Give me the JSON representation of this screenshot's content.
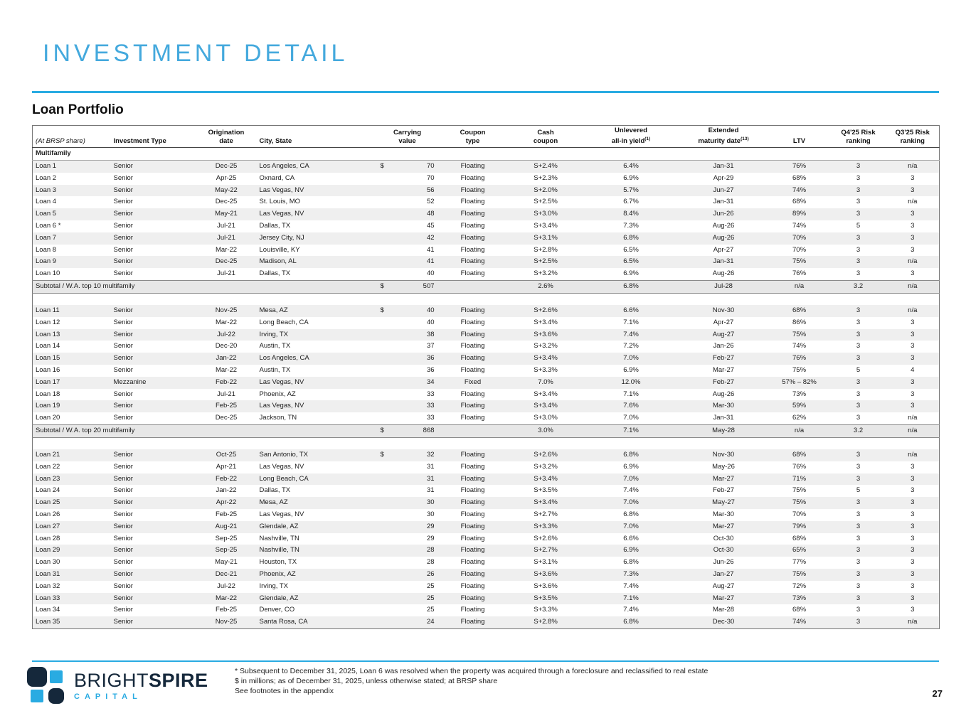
{
  "page": {
    "title": "INVESTMENT DETAIL",
    "section_title": "Loan Portfolio",
    "page_number": "27"
  },
  "colors": {
    "accent_blue": "#29ABE2",
    "title_blue": "#44A9DD",
    "logo_navy": "#15283B",
    "stripe_gray": "#EFEFEF",
    "subtotal_gray": "#E7E7E7"
  },
  "table": {
    "group_label": "Multifamily",
    "headers": [
      {
        "l1": "",
        "l2": "(At BRSP share)"
      },
      {
        "l1": "",
        "l2": "Investment Type"
      },
      {
        "l1": "Origination",
        "l2": "date"
      },
      {
        "l1": "",
        "l2": "City, State"
      },
      {
        "l1": "Carrying",
        "l2": "value"
      },
      {
        "l1": "Coupon",
        "l2": "type"
      },
      {
        "l1": "Cash",
        "l2": "coupon"
      },
      {
        "l1": "Unlevered",
        "l2": "all-in yield",
        "sup": "(1)"
      },
      {
        "l1": "Extended",
        "l2": "maturity date",
        "sup": "(13)"
      },
      {
        "l1": "",
        "l2": "LTV"
      },
      {
        "l1": "Q4'25 Risk",
        "l2": "ranking"
      },
      {
        "l1": "Q3'25 Risk",
        "l2": "ranking"
      }
    ],
    "sections": [
      {
        "rows": [
          [
            "Loan 1",
            "Senior",
            "Dec-25",
            "Los Angeles, CA",
            "$",
            "70",
            "Floating",
            "S+2.4%",
            "6.4%",
            "Jan-31",
            "76%",
            "3",
            "n/a"
          ],
          [
            "Loan 2",
            "Senior",
            "Apr-25",
            "Oxnard, CA",
            "",
            "70",
            "Floating",
            "S+2.3%",
            "6.9%",
            "Apr-29",
            "68%",
            "3",
            "3"
          ],
          [
            "Loan 3",
            "Senior",
            "May-22",
            "Las Vegas, NV",
            "",
            "56",
            "Floating",
            "S+2.0%",
            "5.7%",
            "Jun-27",
            "74%",
            "3",
            "3"
          ],
          [
            "Loan 4",
            "Senior",
            "Dec-25",
            "St. Louis, MO",
            "",
            "52",
            "Floating",
            "S+2.5%",
            "6.7%",
            "Jan-31",
            "68%",
            "3",
            "n/a"
          ],
          [
            "Loan 5",
            "Senior",
            "May-21",
            "Las Vegas, NV",
            "",
            "48",
            "Floating",
            "S+3.0%",
            "8.4%",
            "Jun-26",
            "89%",
            "3",
            "3"
          ],
          [
            "Loan 6 *",
            "Senior",
            "Jul-21",
            "Dallas, TX",
            "",
            "45",
            "Floating",
            "S+3.4%",
            "7.3%",
            "Aug-26",
            "74%",
            "5",
            "3"
          ],
          [
            "Loan 7",
            "Senior",
            "Jul-21",
            "Jersey City, NJ",
            "",
            "42",
            "Floating",
            "S+3.1%",
            "6.8%",
            "Aug-26",
            "70%",
            "3",
            "3"
          ],
          [
            "Loan 8",
            "Senior",
            "Mar-22",
            "Louisville, KY",
            "",
            "41",
            "Floating",
            "S+2.8%",
            "6.5%",
            "Apr-27",
            "70%",
            "3",
            "3"
          ],
          [
            "Loan 9",
            "Senior",
            "Dec-25",
            "Madison, AL",
            "",
            "41",
            "Floating",
            "S+2.5%",
            "6.5%",
            "Jan-31",
            "75%",
            "3",
            "n/a"
          ],
          [
            "Loan 10",
            "Senior",
            "Jul-21",
            "Dallas, TX",
            "",
            "40",
            "Floating",
            "S+3.2%",
            "6.9%",
            "Aug-26",
            "76%",
            "3",
            "3"
          ]
        ],
        "subtotal": {
          "label": "Subtotal / W.A. top 10 multifamily",
          "cells": [
            "$",
            "507",
            "",
            "2.6%",
            "6.8%",
            "Jul-28",
            "n/a",
            "3.2",
            "n/a"
          ]
        }
      },
      {
        "rows": [
          [
            "Loan 11",
            "Senior",
            "Nov-25",
            "Mesa, AZ",
            "$",
            "40",
            "Floating",
            "S+2.6%",
            "6.6%",
            "Nov-30",
            "68%",
            "3",
            "n/a"
          ],
          [
            "Loan 12",
            "Senior",
            "Mar-22",
            "Long Beach, CA",
            "",
            "40",
            "Floating",
            "S+3.4%",
            "7.1%",
            "Apr-27",
            "86%",
            "3",
            "3"
          ],
          [
            "Loan 13",
            "Senior",
            "Jul-22",
            "Irving, TX",
            "",
            "38",
            "Floating",
            "S+3.6%",
            "7.4%",
            "Aug-27",
            "75%",
            "3",
            "3"
          ],
          [
            "Loan 14",
            "Senior",
            "Dec-20",
            "Austin, TX",
            "",
            "37",
            "Floating",
            "S+3.2%",
            "7.2%",
            "Jan-26",
            "74%",
            "3",
            "3"
          ],
          [
            "Loan 15",
            "Senior",
            "Jan-22",
            "Los Angeles, CA",
            "",
            "36",
            "Floating",
            "S+3.4%",
            "7.0%",
            "Feb-27",
            "76%",
            "3",
            "3"
          ],
          [
            "Loan 16",
            "Senior",
            "Mar-22",
            "Austin, TX",
            "",
            "36",
            "Floating",
            "S+3.3%",
            "6.9%",
            "Mar-27",
            "75%",
            "5",
            "4"
          ],
          [
            "Loan 17",
            "Mezzanine",
            "Feb-22",
            "Las Vegas, NV",
            "",
            "34",
            "Fixed",
            "7.0%",
            "12.0%",
            "Feb-27",
            "57% – 82%",
            "3",
            "3"
          ],
          [
            "Loan 18",
            "Senior",
            "Jul-21",
            "Phoenix, AZ",
            "",
            "33",
            "Floating",
            "S+3.4%",
            "7.1%",
            "Aug-26",
            "73%",
            "3",
            "3"
          ],
          [
            "Loan 19",
            "Senior",
            "Feb-25",
            "Las Vegas, NV",
            "",
            "33",
            "Floating",
            "S+3.4%",
            "7.6%",
            "Mar-30",
            "59%",
            "3",
            "3"
          ],
          [
            "Loan 20",
            "Senior",
            "Dec-25",
            "Jackson, TN",
            "",
            "33",
            "Floating",
            "S+3.0%",
            "7.0%",
            "Jan-31",
            "62%",
            "3",
            "n/a"
          ]
        ],
        "subtotal": {
          "label": "Subtotal / W.A. top 20 multifamily",
          "cells": [
            "$",
            "868",
            "",
            "3.0%",
            "7.1%",
            "May-28",
            "n/a",
            "3.2",
            "n/a"
          ]
        }
      },
      {
        "rows": [
          [
            "Loan 21",
            "Senior",
            "Oct-25",
            "San Antonio, TX",
            "$",
            "32",
            "Floating",
            "S+2.6%",
            "6.8%",
            "Nov-30",
            "68%",
            "3",
            "n/a"
          ],
          [
            "Loan 22",
            "Senior",
            "Apr-21",
            "Las Vegas, NV",
            "",
            "31",
            "Floating",
            "S+3.2%",
            "6.9%",
            "May-26",
            "76%",
            "3",
            "3"
          ],
          [
            "Loan 23",
            "Senior",
            "Feb-22",
            "Long Beach, CA",
            "",
            "31",
            "Floating",
            "S+3.4%",
            "7.0%",
            "Mar-27",
            "71%",
            "3",
            "3"
          ],
          [
            "Loan 24",
            "Senior",
            "Jan-22",
            "Dallas, TX",
            "",
            "31",
            "Floating",
            "S+3.5%",
            "7.4%",
            "Feb-27",
            "75%",
            "5",
            "3"
          ],
          [
            "Loan 25",
            "Senior",
            "Apr-22",
            "Mesa, AZ",
            "",
            "30",
            "Floating",
            "S+3.4%",
            "7.0%",
            "May-27",
            "75%",
            "3",
            "3"
          ],
          [
            "Loan 26",
            "Senior",
            "Feb-25",
            "Las Vegas, NV",
            "",
            "30",
            "Floating",
            "S+2.7%",
            "6.8%",
            "Mar-30",
            "70%",
            "3",
            "3"
          ],
          [
            "Loan 27",
            "Senior",
            "Aug-21",
            "Glendale, AZ",
            "",
            "29",
            "Floating",
            "S+3.3%",
            "7.0%",
            "Mar-27",
            "79%",
            "3",
            "3"
          ],
          [
            "Loan 28",
            "Senior",
            "Sep-25",
            "Nashville, TN",
            "",
            "29",
            "Floating",
            "S+2.6%",
            "6.6%",
            "Oct-30",
            "68%",
            "3",
            "3"
          ],
          [
            "Loan 29",
            "Senior",
            "Sep-25",
            "Nashville, TN",
            "",
            "28",
            "Floating",
            "S+2.7%",
            "6.9%",
            "Oct-30",
            "65%",
            "3",
            "3"
          ],
          [
            "Loan 30",
            "Senior",
            "May-21",
            "Houston, TX",
            "",
            "28",
            "Floating",
            "S+3.1%",
            "6.8%",
            "Jun-26",
            "77%",
            "3",
            "3"
          ],
          [
            "Loan 31",
            "Senior",
            "Dec-21",
            "Phoenix, AZ",
            "",
            "26",
            "Floating",
            "S+3.6%",
            "7.3%",
            "Jan-27",
            "75%",
            "3",
            "3"
          ],
          [
            "Loan 32",
            "Senior",
            "Jul-22",
            "Irving, TX",
            "",
            "25",
            "Floating",
            "S+3.6%",
            "7.4%",
            "Aug-27",
            "72%",
            "3",
            "3"
          ],
          [
            "Loan 33",
            "Senior",
            "Mar-22",
            "Glendale, AZ",
            "",
            "25",
            "Floating",
            "S+3.5%",
            "7.1%",
            "Mar-27",
            "73%",
            "3",
            "3"
          ],
          [
            "Loan 34",
            "Senior",
            "Feb-25",
            "Denver, CO",
            "",
            "25",
            "Floating",
            "S+3.3%",
            "7.4%",
            "Mar-28",
            "68%",
            "3",
            "3"
          ],
          [
            "Loan 35",
            "Senior",
            "Nov-25",
            "Santa Rosa, CA",
            "",
            "24",
            "Floating",
            "S+2.8%",
            "6.8%",
            "Dec-30",
            "74%",
            "3",
            "n/a"
          ]
        ]
      }
    ]
  },
  "footer": {
    "logo": {
      "brand_light": "BRIGHT",
      "brand_bold": "SPIRE",
      "tagline": "CAPITAL"
    },
    "footnotes": [
      "* Subsequent to December 31, 2025, Loan 6 was resolved when the property was acquired through a foreclosure and reclassified to real estate",
      "$ in millions; as of December 31, 2025, unless otherwise stated; at BRSP share",
      "See footnotes in the appendix"
    ]
  }
}
